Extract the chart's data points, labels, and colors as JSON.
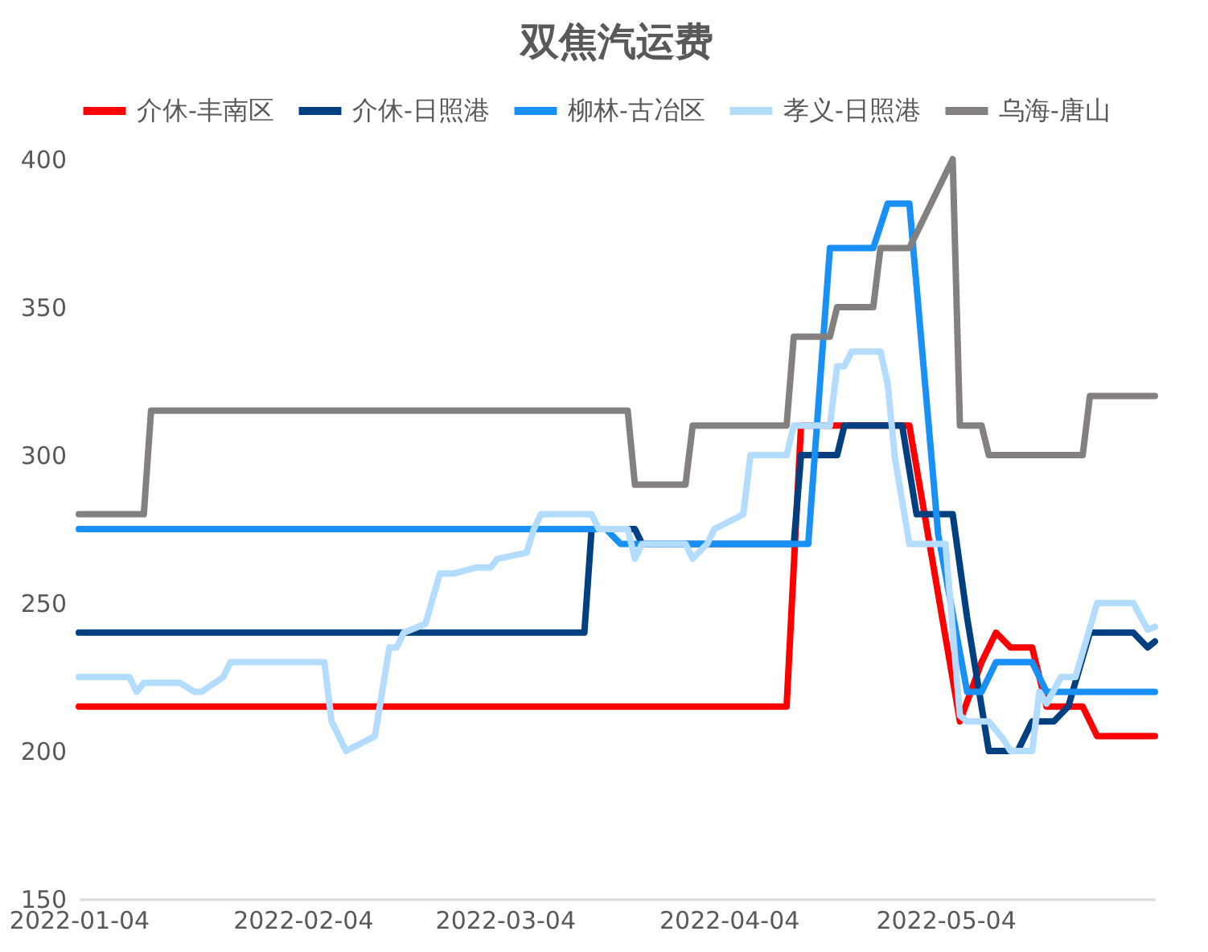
{
  "chart_data": {
    "type": "line",
    "title": "双焦汽运费",
    "xlim": [
      "2022-01-04",
      "2022-06-02"
    ],
    "xticks": [
      "2022-01-04",
      "2022-02-04",
      "2022-03-04",
      "2022-04-04",
      "2022-05-04"
    ],
    "ylim": [
      150,
      400
    ],
    "yticks": [
      150,
      200,
      250,
      300,
      350,
      400
    ],
    "grid": false,
    "legend": "top",
    "series": [
      {
        "name": "介休-丰南区",
        "color": "#ff0000",
        "x": [
          "2022-01-04",
          "2022-04-12",
          "2022-04-14",
          "2022-04-29",
          "2022-05-06",
          "2022-05-09",
          "2022-05-11",
          "2022-05-13",
          "2022-05-16",
          "2022-05-18",
          "2022-05-23",
          "2022-05-25",
          "2022-06-02"
        ],
        "values": [
          215,
          215,
          310,
          310,
          210,
          230,
          240,
          235,
          235,
          215,
          215,
          205,
          205
        ]
      },
      {
        "name": "介休-日照港",
        "color": "#004080",
        "x": [
          "2022-01-04",
          "2022-03-15",
          "2022-03-16",
          "2022-03-22",
          "2022-03-23",
          "2022-04-13",
          "2022-04-14",
          "2022-04-19",
          "2022-04-20",
          "2022-04-28",
          "2022-04-30",
          "2022-05-05",
          "2022-05-07",
          "2022-05-10",
          "2022-05-14",
          "2022-05-16",
          "2022-05-19",
          "2022-05-21",
          "2022-05-24",
          "2022-05-30",
          "2022-06-01",
          "2022-06-02"
        ],
        "values": [
          240,
          240,
          275,
          275,
          270,
          270,
          300,
          300,
          310,
          310,
          280,
          280,
          245,
          200,
          200,
          210,
          210,
          215,
          240,
          240,
          235,
          237
        ]
      },
      {
        "name": "柳林-古冶区",
        "color": "#1890f5",
        "x": [
          "2022-01-04",
          "2022-03-18",
          "2022-03-20",
          "2022-04-15",
          "2022-04-18",
          "2022-04-24",
          "2022-04-26",
          "2022-04-29",
          "2022-05-03",
          "2022-05-07",
          "2022-05-09",
          "2022-05-11",
          "2022-05-16",
          "2022-05-18",
          "2022-06-02"
        ],
        "values": [
          275,
          275,
          270,
          270,
          370,
          370,
          385,
          385,
          273,
          220,
          220,
          230,
          230,
          220,
          220
        ]
      },
      {
        "name": "孝义-日照港",
        "color": "#b4dcff",
        "x": [
          "2022-01-04",
          "2022-01-11",
          "2022-01-12",
          "2022-01-13",
          "2022-01-18",
          "2022-01-20",
          "2022-01-21",
          "2022-01-24",
          "2022-01-25",
          "2022-02-07",
          "2022-02-08",
          "2022-02-10",
          "2022-02-14",
          "2022-02-16",
          "2022-02-17",
          "2022-02-18",
          "2022-02-21",
          "2022-02-23",
          "2022-02-25",
          "2022-02-28",
          "2022-03-02",
          "2022-03-03",
          "2022-03-07",
          "2022-03-08",
          "2022-03-09",
          "2022-03-16",
          "2022-03-17",
          "2022-03-21",
          "2022-03-22",
          "2022-03-23",
          "2022-03-29",
          "2022-03-30",
          "2022-04-01",
          "2022-04-02",
          "2022-04-06",
          "2022-04-07",
          "2022-04-12",
          "2022-04-13",
          "2022-04-18",
          "2022-04-19",
          "2022-04-20",
          "2022-04-21",
          "2022-04-25",
          "2022-04-26",
          "2022-04-27",
          "2022-04-29",
          "2022-05-04",
          "2022-05-06",
          "2022-05-07",
          "2022-05-10",
          "2022-05-12",
          "2022-05-13",
          "2022-05-16",
          "2022-05-17",
          "2022-05-18",
          "2022-05-20",
          "2022-05-22",
          "2022-05-25",
          "2022-05-30",
          "2022-06-01",
          "2022-06-02"
        ],
        "values": [
          225,
          225,
          220,
          223,
          223,
          220,
          220,
          225,
          230,
          230,
          210,
          200,
          205,
          235,
          235,
          240,
          243,
          260,
          260,
          262,
          262,
          265,
          267,
          275,
          280,
          280,
          275,
          275,
          265,
          270,
          270,
          265,
          270,
          275,
          280,
          300,
          300,
          310,
          310,
          330,
          330,
          335,
          335,
          324,
          299,
          270,
          270,
          212,
          210,
          210,
          204,
          200,
          200,
          220,
          216,
          225,
          225,
          250,
          250,
          241,
          242
        ]
      },
      {
        "name": "乌海-唐山",
        "color": "#858080",
        "x": [
          "2022-01-04",
          "2022-01-13",
          "2022-01-14",
          "2022-03-21",
          "2022-03-22",
          "2022-03-29",
          "2022-03-30",
          "2022-04-12",
          "2022-04-13",
          "2022-04-18",
          "2022-04-19",
          "2022-04-24",
          "2022-04-25",
          "2022-04-29",
          "2022-05-05",
          "2022-05-06",
          "2022-05-09",
          "2022-05-10",
          "2022-05-23",
          "2022-05-24",
          "2022-06-02"
        ],
        "values": [
          280,
          280,
          315,
          315,
          290,
          290,
          310,
          310,
          340,
          340,
          350,
          350,
          370,
          370,
          400,
          310,
          310,
          300,
          300,
          320,
          320
        ]
      }
    ]
  }
}
